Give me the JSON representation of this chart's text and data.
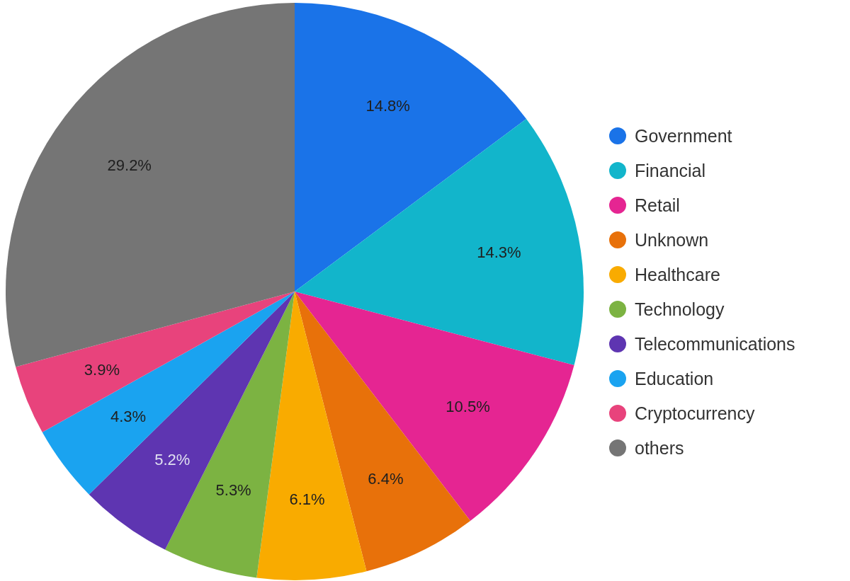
{
  "chart_data": {
    "type": "pie",
    "categories": [
      "Government",
      "Financial",
      "Retail",
      "Unknown",
      "Healthcare",
      "Technology",
      "Telecommunications",
      "Education",
      "Cryptocurrency",
      "others"
    ],
    "values": [
      14.8,
      14.3,
      10.5,
      6.4,
      6.1,
      5.3,
      5.2,
      4.3,
      3.9,
      29.2
    ],
    "colors": [
      "#1a73e8",
      "#12b5cb",
      "#e52592",
      "#e8710a",
      "#f9ab00",
      "#7cb342",
      "#5e35b1",
      "#1aa3f0",
      "#e8437c",
      "#757575"
    ],
    "value_labels": [
      "14.8%",
      "14.3%",
      "10.5%",
      "6.4%",
      "6.1%",
      "5.3%",
      "5.2%",
      "4.3%",
      "3.9%",
      "29.2%"
    ],
    "legend": "right"
  }
}
